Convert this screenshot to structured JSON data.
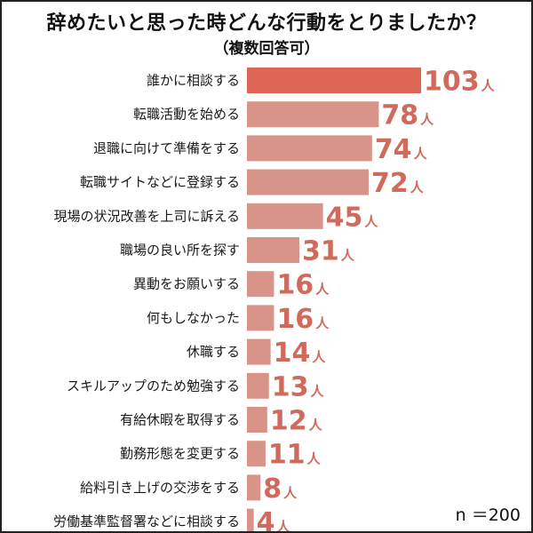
{
  "title": "辞めたいと思った時どんな行動をとりましたか？",
  "subtitle": "（複数回答可）",
  "sample_size": "n ＝200",
  "colors": {
    "bar_top": "#dd6655",
    "bar": "#d89488",
    "value_text": "#d06a5c"
  },
  "chart_data": {
    "type": "bar",
    "orientation": "horizontal",
    "title": "辞めたいと思った時どんな行動をとりましたか？",
    "subtitle": "（複数回答可）",
    "unit": "人",
    "categories": [
      "誰かに相談する",
      "転職活動を始める",
      "退職に向けて準備をする",
      "転職サイトなどに登録する",
      "現場の状況改善を上司に訴える",
      "職場の良い所を探す",
      "異動をお願いする",
      "何もしなかった",
      "休職する",
      "スキルアップのため勉強する",
      "有給休暇を取得する",
      "勤務形態を変更する",
      "給料引き上げの交渉をする",
      "労働基準監督署などに相談する"
    ],
    "values": [
      103,
      78,
      74,
      72,
      45,
      31,
      16,
      16,
      14,
      13,
      12,
      11,
      8,
      4
    ],
    "xlim": [
      0,
      103
    ],
    "grid": false,
    "legend": "none"
  }
}
